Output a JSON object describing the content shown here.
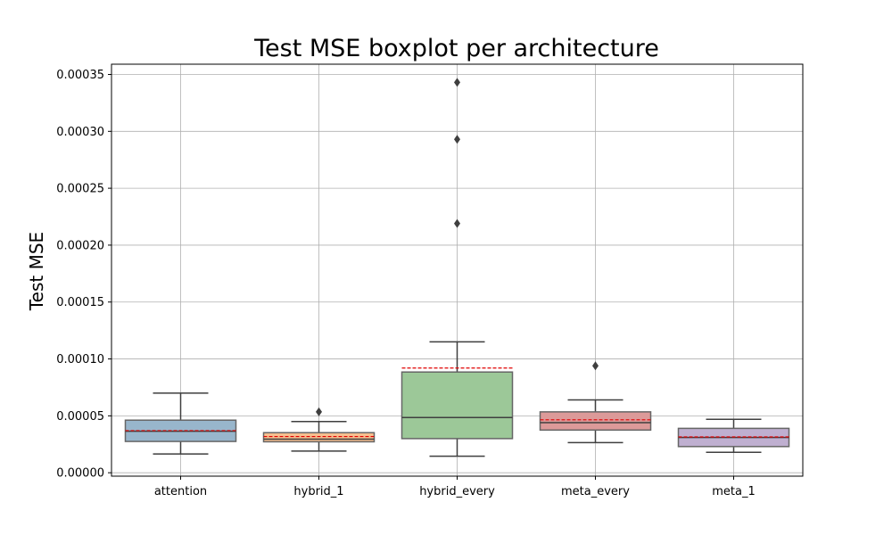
{
  "chart_data": {
    "type": "box",
    "title": "Test MSE boxplot per architecture",
    "xlabel": "",
    "ylabel": "Test MSE",
    "ylim": [
      -3e-06,
      0.000359
    ],
    "yticks": [
      "0.00000",
      "0.00005",
      "0.00010",
      "0.00015",
      "0.00020",
      "0.00025",
      "0.00030",
      "0.00035"
    ],
    "ytick_values": [
      0,
      5e-05,
      0.0001,
      0.00015,
      0.0002,
      0.00025,
      0.0003,
      0.00035
    ],
    "grid": true,
    "categories": [
      "attention",
      "hybrid_1",
      "hybrid_every",
      "meta_every",
      "meta_1"
    ],
    "series": [
      {
        "category": "attention",
        "whisker_low": 1.65e-05,
        "q1": 2.75e-05,
        "median": 3.65e-05,
        "q3": 4.62e-05,
        "whisker_high": 7e-05,
        "mean": 3.7e-05,
        "outliers": [],
        "color": "#98b6cc"
      },
      {
        "category": "hybrid_1",
        "whisker_low": 1.9e-05,
        "q1": 2.72e-05,
        "median": 2.95e-05,
        "q3": 3.52e-05,
        "whisker_high": 4.5e-05,
        "mean": 3.18e-05,
        "outliers": [
          5.35e-05
        ],
        "color": "#f7bf8f"
      },
      {
        "category": "hybrid_every",
        "whisker_low": 1.45e-05,
        "q1": 3e-05,
        "median": 4.85e-05,
        "q3": 8.85e-05,
        "whisker_high": 0.000115,
        "mean": 9.2e-05,
        "outliers": [
          0.000219,
          0.000293,
          0.000343
        ],
        "color": "#9cc898"
      },
      {
        "category": "meta_every",
        "whisker_low": 2.65e-05,
        "q1": 3.75e-05,
        "median": 4.4e-05,
        "q3": 5.35e-05,
        "whisker_high": 6.4e-05,
        "mean": 4.65e-05,
        "outliers": [
          9.4e-05
        ],
        "color": "#dc9a99"
      },
      {
        "category": "meta_1",
        "whisker_low": 1.8e-05,
        "q1": 2.3e-05,
        "median": 3.1e-05,
        "q3": 3.9e-05,
        "whisker_high": 4.7e-05,
        "mean": 3.15e-05,
        "outliers": [],
        "color": "#bfafd0"
      }
    ],
    "mean_line_color": "#e00000"
  }
}
